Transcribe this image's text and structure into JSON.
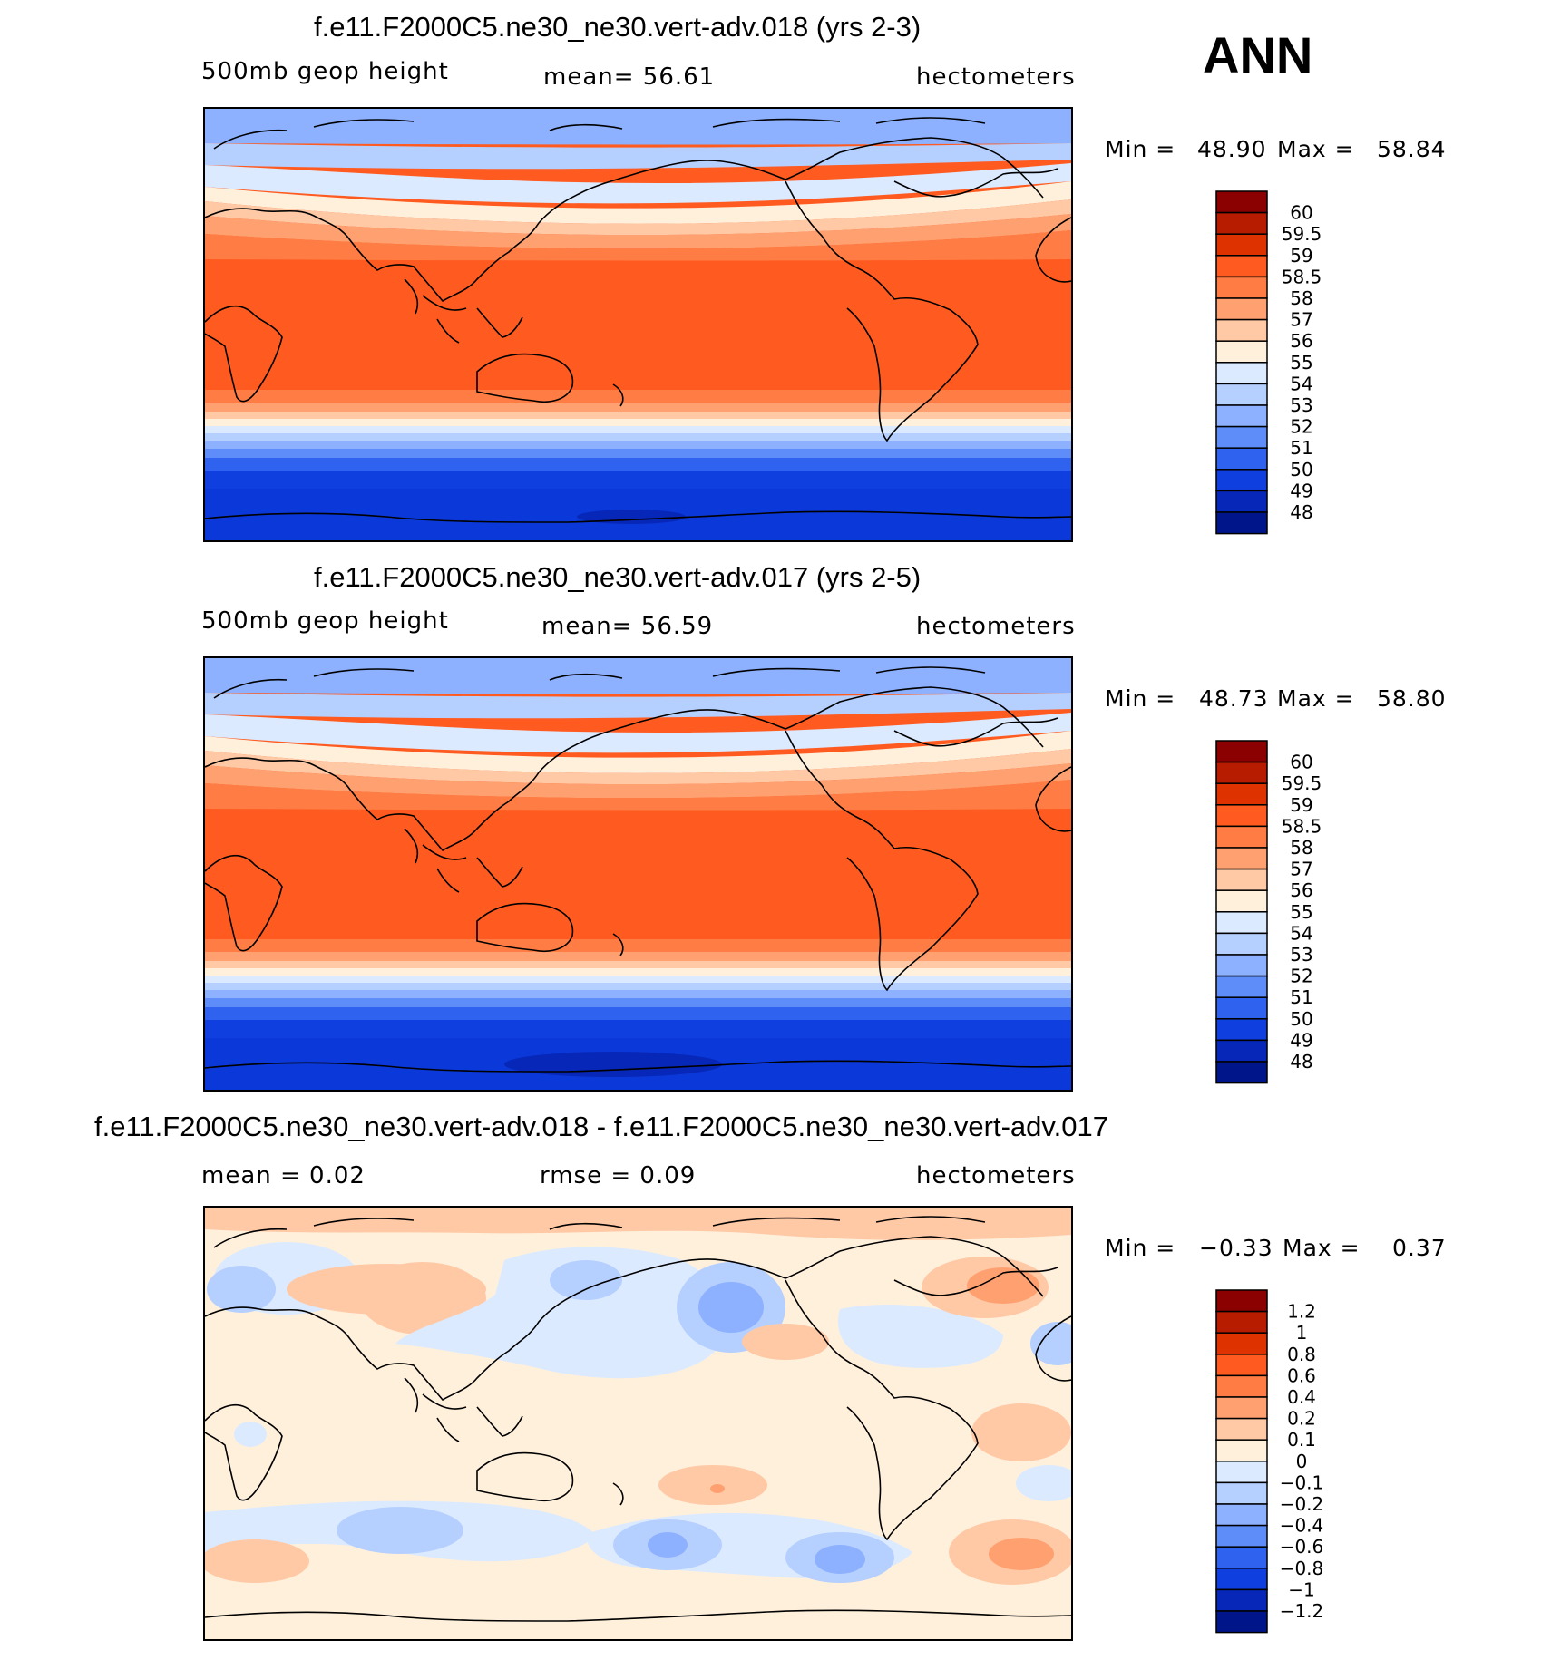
{
  "season": "ANN",
  "panels": [
    {
      "title": "f.e11.F2000C5.ne30_ne30.vert-adv.018 (yrs 2-3)",
      "variable": "500mb  geop  height",
      "mean_text": "mean=    56.61",
      "units": "hectometers",
      "min_label": "Min  =",
      "min_value": "48.90",
      "max_label": "Max  =",
      "max_value": "58.84",
      "colorbar_labels": [
        "60",
        "59.5",
        "59",
        "58.5",
        "58",
        "57",
        "56",
        "55",
        "54",
        "53",
        "52",
        "51",
        "50",
        "49",
        "48"
      ],
      "colorbar_colors": [
        "#8b0000",
        "#b71c00",
        "#de3300",
        "#ff5a1f",
        "#ff7d44",
        "#ffa070",
        "#ffc9a6",
        "#fff0dc",
        "#dbeaff",
        "#b5cfff",
        "#8db1ff",
        "#5e8dfa",
        "#2f62ef",
        "#0f3fdf",
        "#0727b8",
        "#00158a"
      ]
    },
    {
      "title": "f.e11.F2000C5.ne30_ne30.vert-adv.017 (yrs 2-5)",
      "variable": "500mb  geop  height",
      "mean_text": "mean=    56.59",
      "units": "hectometers",
      "min_label": "Min  =",
      "min_value": "48.73",
      "max_label": "Max  =",
      "max_value": "58.80",
      "colorbar_labels": [
        "60",
        "59.5",
        "59",
        "58.5",
        "58",
        "57",
        "56",
        "55",
        "54",
        "53",
        "52",
        "51",
        "50",
        "49",
        "48"
      ],
      "colorbar_colors": [
        "#8b0000",
        "#b71c00",
        "#de3300",
        "#ff5a1f",
        "#ff7d44",
        "#ffa070",
        "#ffc9a6",
        "#fff0dc",
        "#dbeaff",
        "#b5cfff",
        "#8db1ff",
        "#5e8dfa",
        "#2f62ef",
        "#0f3fdf",
        "#0727b8",
        "#00158a"
      ]
    },
    {
      "title": "f.e11.F2000C5.ne30_ne30.vert-adv.018 - f.e11.F2000C5.ne30_ne30.vert-adv.017",
      "mean_text": "mean =      0.02",
      "rmse_text": "rmse  =      0.09",
      "units": "hectometers",
      "min_label": "Min  =",
      "min_value": "−0.33",
      "max_label": "Max  =",
      "max_value": "0.37",
      "colorbar_labels": [
        "1.2",
        "1",
        "0.8",
        "0.6",
        "0.4",
        "0.2",
        "0.1",
        "0",
        "−0.1",
        "−0.2",
        "−0.4",
        "−0.6",
        "−0.8",
        "−1",
        "−1.2"
      ],
      "colorbar_colors": [
        "#8b0000",
        "#b71c00",
        "#de3300",
        "#ff5a1f",
        "#ff7d44",
        "#ffa070",
        "#ffc9a6",
        "#fff0dc",
        "#dbeaff",
        "#b5cfff",
        "#8db1ff",
        "#5e8dfa",
        "#2f62ef",
        "#0f3fdf",
        "#0727b8",
        "#00158a"
      ]
    }
  ]
}
